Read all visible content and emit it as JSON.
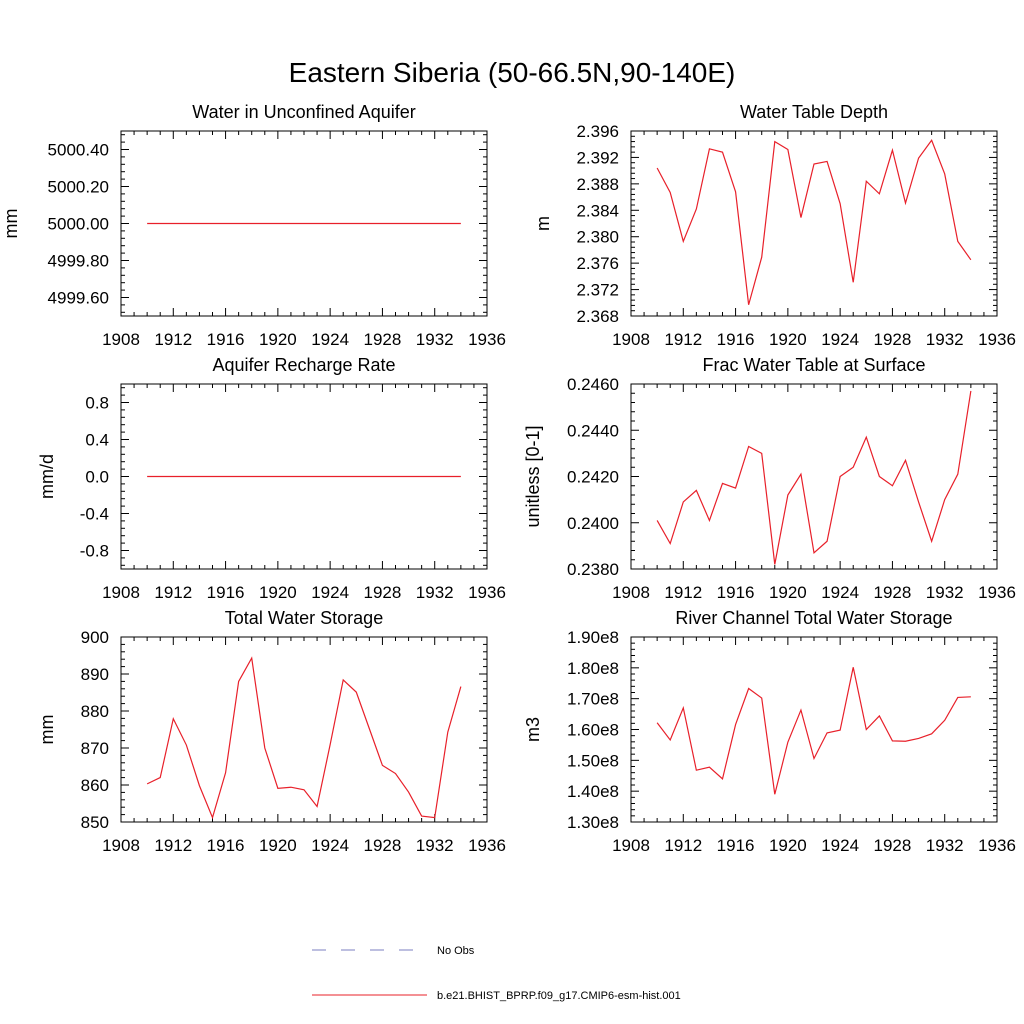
{
  "figure": {
    "title": "Eastern Siberia (50-66.5N,90-140E)"
  },
  "legend": {
    "entries": [
      {
        "label": "No Obs",
        "style": "dashed",
        "color": "#7b7fc0"
      },
      {
        "label": "b.e21.BHIST_BPRP.f09_g17.CMIP6-esm-hist.001",
        "style": "solid",
        "color": "#e8202a"
      }
    ]
  },
  "chart_data": [
    {
      "type": "line",
      "title": "Water in Unconfined Aquifer",
      "ylabel": "mm",
      "xlim": [
        1908,
        1936
      ],
      "xticks": [
        1908,
        1912,
        1916,
        1920,
        1924,
        1928,
        1932,
        1936
      ],
      "ylim": [
        4999.5,
        5000.5
      ],
      "yticks": [
        4999.6,
        4999.8,
        5000.0,
        5000.2,
        5000.4
      ],
      "ytick_labels": [
        "4999.60",
        "4999.80",
        "5000.00",
        "5000.20",
        "5000.40"
      ],
      "series": [
        {
          "color": "#e8202a",
          "x": [
            1910,
            1911,
            1912,
            1913,
            1914,
            1915,
            1916,
            1917,
            1918,
            1919,
            1920,
            1921,
            1922,
            1923,
            1924,
            1925,
            1926,
            1927,
            1928,
            1929,
            1930,
            1931,
            1932,
            1933,
            1934
          ],
          "y": [
            5000,
            5000,
            5000,
            5000,
            5000,
            5000,
            5000,
            5000,
            5000,
            5000,
            5000,
            5000,
            5000,
            5000,
            5000,
            5000,
            5000,
            5000,
            5000,
            5000,
            5000,
            5000,
            5000,
            5000,
            5000
          ]
        }
      ]
    },
    {
      "type": "line",
      "title": "Water Table Depth",
      "ylabel": "m",
      "xlim": [
        1908,
        1936
      ],
      "xticks": [
        1908,
        1912,
        1916,
        1920,
        1924,
        1928,
        1932,
        1936
      ],
      "ylim": [
        2.368,
        2.396
      ],
      "yticks": [
        2.368,
        2.372,
        2.376,
        2.38,
        2.384,
        2.388,
        2.392,
        2.396
      ],
      "ytick_labels": [
        "2.368",
        "2.372",
        "2.376",
        "2.380",
        "2.384",
        "2.388",
        "2.392",
        "2.396"
      ],
      "series": [
        {
          "color": "#e8202a",
          "x": [
            1910,
            1911,
            1912,
            1913,
            1914,
            1915,
            1916,
            1917,
            1918,
            1919,
            1920,
            1921,
            1922,
            1923,
            1924,
            1925,
            1926,
            1927,
            1928,
            1929,
            1930,
            1931,
            1932,
            1933,
            1934
          ],
          "y": [
            2.3904,
            2.3867,
            2.3793,
            2.3842,
            2.3933,
            2.3928,
            2.3868,
            2.3697,
            2.3769,
            2.3944,
            2.3932,
            2.3829,
            2.391,
            2.3914,
            2.385,
            2.3731,
            2.3884,
            2.3865,
            2.3931,
            2.3851,
            2.3919,
            2.3946,
            2.3895,
            2.3793,
            2.3765
          ]
        }
      ]
    },
    {
      "type": "line",
      "title": "Aquifer Recharge Rate",
      "ylabel": "mm/d",
      "xlim": [
        1908,
        1936
      ],
      "xticks": [
        1908,
        1912,
        1916,
        1920,
        1924,
        1928,
        1932,
        1936
      ],
      "ylim": [
        -1.0,
        1.0
      ],
      "yticks": [
        -0.8,
        -0.4,
        0.0,
        0.4,
        0.8
      ],
      "ytick_labels": [
        "-0.8",
        "-0.4",
        "0.0",
        "0.4",
        "0.8"
      ],
      "series": [
        {
          "color": "#e8202a",
          "x": [
            1910,
            1911,
            1912,
            1913,
            1914,
            1915,
            1916,
            1917,
            1918,
            1919,
            1920,
            1921,
            1922,
            1923,
            1924,
            1925,
            1926,
            1927,
            1928,
            1929,
            1930,
            1931,
            1932,
            1933,
            1934
          ],
          "y": [
            0,
            0,
            0,
            0,
            0,
            0,
            0,
            0,
            0,
            0,
            0,
            0,
            0,
            0,
            0,
            0,
            0,
            0,
            0,
            0,
            0,
            0,
            0,
            0,
            0
          ]
        }
      ]
    },
    {
      "type": "line",
      "title": "Frac Water Table at Surface",
      "ylabel": "unitless [0-1]",
      "xlim": [
        1908,
        1936
      ],
      "xticks": [
        1908,
        1912,
        1916,
        1920,
        1924,
        1928,
        1932,
        1936
      ],
      "ylim": [
        0.238,
        0.246
      ],
      "yticks": [
        0.238,
        0.24,
        0.242,
        0.244,
        0.246
      ],
      "ytick_labels": [
        "0.2380",
        "0.2400",
        "0.2420",
        "0.2440",
        "0.2460"
      ],
      "series": [
        {
          "color": "#e8202a",
          "x": [
            1910,
            1911,
            1912,
            1913,
            1914,
            1915,
            1916,
            1917,
            1918,
            1919,
            1920,
            1921,
            1922,
            1923,
            1924,
            1925,
            1926,
            1927,
            1928,
            1929,
            1930,
            1931,
            1932,
            1933,
            1934
          ],
          "y": [
            0.2401,
            0.2391,
            0.2409,
            0.2414,
            0.2401,
            0.2417,
            0.2415,
            0.2433,
            0.243,
            0.2382,
            0.2412,
            0.2421,
            0.2387,
            0.2392,
            0.242,
            0.2424,
            0.2437,
            0.242,
            0.2416,
            0.2427,
            0.2409,
            0.2392,
            0.241,
            0.2421,
            0.2457
          ]
        }
      ]
    },
    {
      "type": "line",
      "title": "Total Water Storage",
      "ylabel": "mm",
      "xlim": [
        1908,
        1936
      ],
      "xticks": [
        1908,
        1912,
        1916,
        1920,
        1924,
        1928,
        1932,
        1936
      ],
      "ylim": [
        850,
        900
      ],
      "yticks": [
        850,
        860,
        870,
        880,
        890,
        900
      ],
      "ytick_labels": [
        "850",
        "860",
        "870",
        "880",
        "890",
        "900"
      ],
      "series": [
        {
          "color": "#e8202a",
          "x": [
            1910,
            1911,
            1912,
            1913,
            1914,
            1915,
            1916,
            1917,
            1918,
            1919,
            1920,
            1921,
            1922,
            1923,
            1924,
            1925,
            1926,
            1927,
            1928,
            1929,
            1930,
            1931,
            1932,
            1933,
            1934
          ],
          "y": [
            860.3,
            862.0,
            877.9,
            870.8,
            859.8,
            851.2,
            863.3,
            888.0,
            894.3,
            870.0,
            859.1,
            859.4,
            858.7,
            854.2,
            870.9,
            888.4,
            885.1,
            875.2,
            865.3,
            863.1,
            858.1,
            851.6,
            851.2,
            874.3,
            886.6
          ]
        }
      ]
    },
    {
      "type": "line",
      "title": "River Channel Total Water Storage",
      "ylabel": "m3",
      "xlim": [
        1908,
        1936
      ],
      "xticks": [
        1908,
        1912,
        1916,
        1920,
        1924,
        1928,
        1932,
        1936
      ],
      "ylim": [
        130000000,
        190000000
      ],
      "yticks": [
        130000000,
        140000000,
        150000000,
        160000000,
        170000000,
        180000000,
        190000000
      ],
      "ytick_labels": [
        "1.30e8",
        "1.40e8",
        "1.50e8",
        "1.60e8",
        "1.70e8",
        "1.80e8",
        "1.90e8"
      ],
      "series": [
        {
          "color": "#e8202a",
          "x": [
            1910,
            1911,
            1912,
            1913,
            1914,
            1915,
            1916,
            1917,
            1918,
            1919,
            1920,
            1921,
            1922,
            1923,
            1924,
            1925,
            1926,
            1927,
            1928,
            1929,
            1930,
            1931,
            1932,
            1933,
            1934
          ],
          "y": [
            162200000,
            156600000,
            167000000,
            146800000,
            147800000,
            144000000,
            161600000,
            173300000,
            170200000,
            139000000,
            155900000,
            166300000,
            150600000,
            158900000,
            159800000,
            180200000,
            160000000,
            164400000,
            156300000,
            156200000,
            157100000,
            158600000,
            163000000,
            170400000,
            170600000
          ]
        }
      ]
    }
  ]
}
